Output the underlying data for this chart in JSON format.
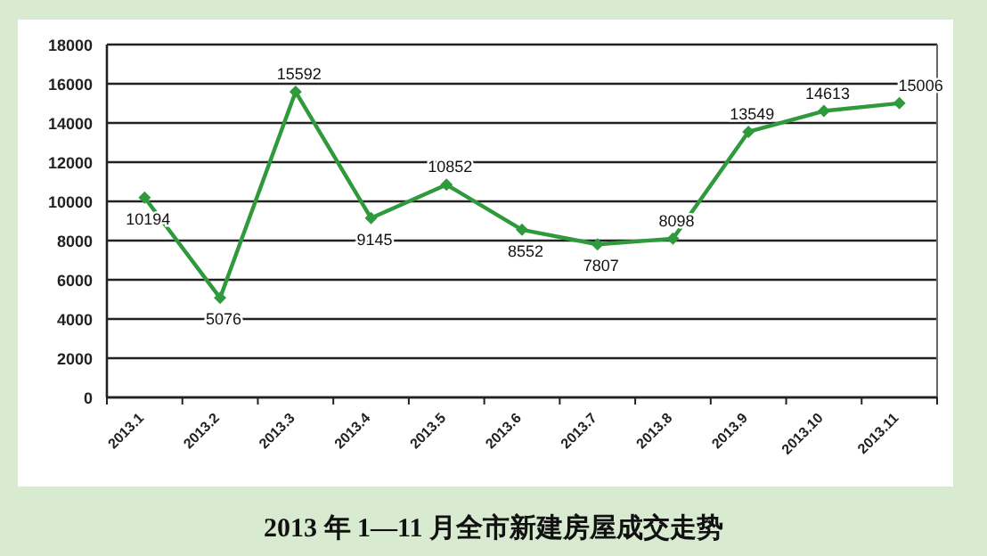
{
  "chart_data": {
    "type": "line",
    "title": "2013 年 1—11 月全市新建房屋成交走势",
    "categories": [
      "2013.1",
      "2013.2",
      "2013.3",
      "2013.4",
      "2013.5",
      "2013.6",
      "2013.7",
      "2013.8",
      "2013.9",
      "2013.10",
      "2013.11"
    ],
    "values": [
      10194,
      5076,
      15592,
      9145,
      10852,
      8552,
      7807,
      8098,
      13549,
      14613,
      15006
    ],
    "color": "#2f9a3c",
    "marker": "diamond",
    "line_style": "solid",
    "data_labels": true,
    "grid": "y",
    "ylim": [
      0,
      18000
    ],
    "yticks": [
      0,
      2000,
      4000,
      6000,
      8000,
      10000,
      12000,
      14000,
      16000,
      18000
    ]
  }
}
